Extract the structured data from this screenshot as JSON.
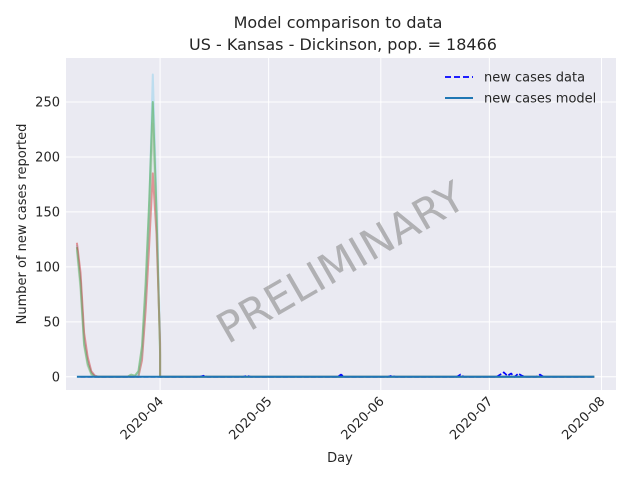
{
  "chart_data": {
    "type": "line",
    "title": "Model comparison to data",
    "subtitle": "US - Kansas - Dickinson, pop. = 18466",
    "xlabel": "Day",
    "ylabel": "Number of new cases reported",
    "watermark": "PRELIMINARY",
    "x_axis": {
      "type": "date",
      "range": [
        "2020-03-06",
        "2020-08-05"
      ],
      "ticks": [
        "2020-04",
        "2020-05",
        "2020-06",
        "2020-07",
        "2020-08"
      ]
    },
    "y_axis": {
      "range": [
        -12,
        290
      ],
      "ticks": [
        0,
        50,
        100,
        150,
        200,
        250
      ]
    },
    "grid": true,
    "legend": {
      "position": "top-right",
      "entries": [
        {
          "label": "new cases data",
          "style": "dashed",
          "color": "#0000ff"
        },
        {
          "label": "new cases model",
          "style": "solid",
          "color": "#1f77b4"
        }
      ]
    },
    "series": [
      {
        "name": "new cases data",
        "color": "#0000ff",
        "style": "dashed",
        "points": [
          [
            "2020-03-10",
            0
          ],
          [
            "2020-04-12",
            0
          ],
          [
            "2020-04-13",
            1
          ],
          [
            "2020-04-14",
            0
          ],
          [
            "2020-04-24",
            0
          ],
          [
            "2020-04-25",
            1
          ],
          [
            "2020-04-26",
            0
          ],
          [
            "2020-05-20",
            0
          ],
          [
            "2020-05-21",
            2
          ],
          [
            "2020-05-22",
            0
          ],
          [
            "2020-06-03",
            0
          ],
          [
            "2020-06-04",
            1
          ],
          [
            "2020-06-05",
            0
          ],
          [
            "2020-06-22",
            0
          ],
          [
            "2020-06-23",
            2
          ],
          [
            "2020-06-24",
            0
          ],
          [
            "2020-07-03",
            0
          ],
          [
            "2020-07-04",
            2
          ],
          [
            "2020-07-05",
            4
          ],
          [
            "2020-07-06",
            1
          ],
          [
            "2020-07-07",
            3
          ],
          [
            "2020-07-08",
            0
          ],
          [
            "2020-07-09",
            3
          ],
          [
            "2020-07-10",
            1
          ],
          [
            "2020-07-11",
            0
          ],
          [
            "2020-07-14",
            0
          ],
          [
            "2020-07-15",
            2
          ],
          [
            "2020-07-16",
            0
          ],
          [
            "2020-07-30",
            0
          ]
        ]
      },
      {
        "name": "new cases model",
        "color": "#1f77b4",
        "style": "solid",
        "points": [
          [
            "2020-03-09",
            0
          ],
          [
            "2020-03-10",
            0
          ],
          [
            "2020-07-30",
            0
          ]
        ]
      }
    ],
    "model_ensemble": [
      {
        "color": "#87ceeb",
        "points": [
          [
            "2020-03-09",
            120
          ],
          [
            "2020-03-10",
            90
          ],
          [
            "2020-03-11",
            35
          ],
          [
            "2020-03-12",
            15
          ],
          [
            "2020-03-13",
            4
          ],
          [
            "2020-03-14",
            1
          ],
          [
            "2020-03-15",
            0
          ],
          [
            "2020-03-25",
            0
          ],
          [
            "2020-03-26",
            3
          ],
          [
            "2020-03-27",
            20
          ],
          [
            "2020-03-28",
            70
          ],
          [
            "2020-03-29",
            150
          ],
          [
            "2020-03-30",
            275
          ],
          [
            "2020-03-31",
            160
          ],
          [
            "2020-04-01",
            40
          ],
          [
            "2020-04-01",
            0
          ],
          [
            "2020-07-30",
            0
          ]
        ]
      },
      {
        "color": "#2ca02c",
        "points": [
          [
            "2020-03-09",
            118
          ],
          [
            "2020-03-10",
            85
          ],
          [
            "2020-03-11",
            30
          ],
          [
            "2020-03-12",
            12
          ],
          [
            "2020-03-13",
            3
          ],
          [
            "2020-03-14",
            0
          ],
          [
            "2020-03-23",
            0
          ],
          [
            "2020-03-24",
            2
          ],
          [
            "2020-03-25",
            1
          ],
          [
            "2020-03-26",
            5
          ],
          [
            "2020-03-27",
            28
          ],
          [
            "2020-03-28",
            85
          ],
          [
            "2020-03-29",
            160
          ],
          [
            "2020-03-30",
            250
          ],
          [
            "2020-03-31",
            150
          ],
          [
            "2020-04-01",
            20
          ],
          [
            "2020-04-01",
            0
          ],
          [
            "2020-07-30",
            0
          ]
        ]
      },
      {
        "color": "#d62728",
        "points": [
          [
            "2020-03-09",
            122
          ],
          [
            "2020-03-10",
            95
          ],
          [
            "2020-03-11",
            40
          ],
          [
            "2020-03-12",
            18
          ],
          [
            "2020-03-13",
            5
          ],
          [
            "2020-03-14",
            1
          ],
          [
            "2020-03-15",
            0
          ],
          [
            "2020-03-26",
            0
          ],
          [
            "2020-03-27",
            15
          ],
          [
            "2020-03-28",
            60
          ],
          [
            "2020-03-29",
            120
          ],
          [
            "2020-03-30",
            185
          ],
          [
            "2020-03-31",
            130
          ],
          [
            "2020-04-01",
            30
          ],
          [
            "2020-04-01",
            0
          ],
          [
            "2020-07-30",
            0
          ]
        ]
      },
      {
        "color": "#8fbc8f",
        "points": [
          [
            "2020-03-09",
            115
          ],
          [
            "2020-03-10",
            80
          ],
          [
            "2020-03-11",
            28
          ],
          [
            "2020-03-12",
            10
          ],
          [
            "2020-03-13",
            2
          ],
          [
            "2020-03-14",
            0
          ],
          [
            "2020-03-26",
            0
          ],
          [
            "2020-03-27",
            22
          ],
          [
            "2020-03-28",
            75
          ],
          [
            "2020-03-29",
            140
          ],
          [
            "2020-03-30",
            230
          ],
          [
            "2020-03-31",
            140
          ],
          [
            "2020-04-01",
            25
          ],
          [
            "2020-04-01",
            0
          ],
          [
            "2020-07-30",
            0
          ]
        ]
      }
    ]
  }
}
